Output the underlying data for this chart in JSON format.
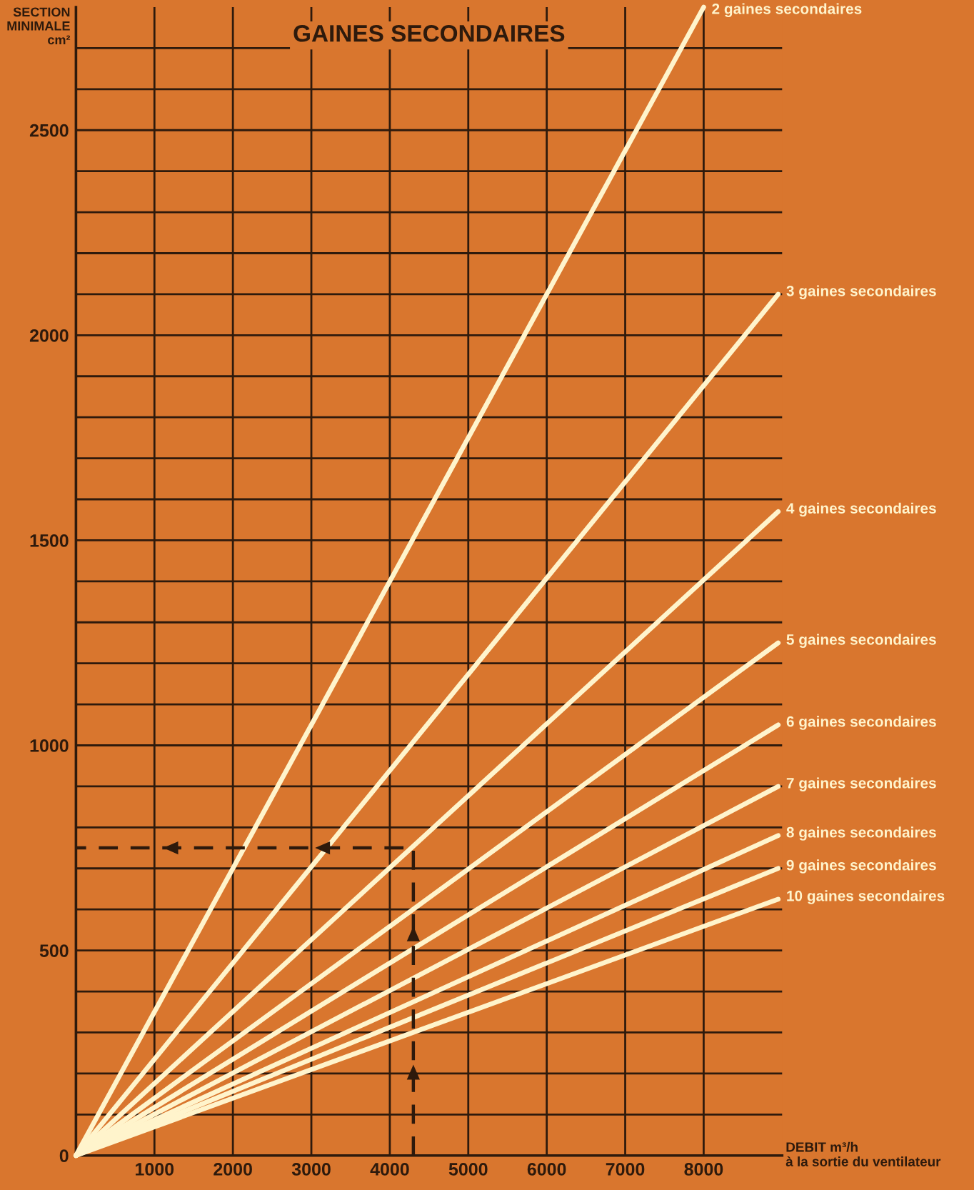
{
  "chart_data": {
    "type": "line",
    "title": "GAINES SECONDAIRES",
    "xlabel": "DEBIT m³/h\nà la sortie du ventilateur",
    "ylabel": "SECTION\nMINIMALE\ncm²",
    "series": [
      {
        "name": "2 gaines secondaires",
        "color": "#fff4cc",
        "x": [
          0,
          8000
        ],
        "values": [
          0,
          2800
        ]
      },
      {
        "name": "3 gaines secondaires",
        "color": "#fff4cc",
        "x": [
          0,
          8950
        ],
        "values": [
          0,
          2100
        ]
      },
      {
        "name": "4 gaines secondaires",
        "color": "#fff4cc",
        "x": [
          0,
          8950
        ],
        "values": [
          0,
          1570
        ]
      },
      {
        "name": "5 gaines secondaires",
        "color": "#fff4cc",
        "x": [
          0,
          8950
        ],
        "values": [
          0,
          1250
        ]
      },
      {
        "name": "6 gaines secondaires",
        "color": "#fff4cc",
        "x": [
          0,
          8950
        ],
        "values": [
          0,
          1050
        ]
      },
      {
        "name": "7 gaines secondaires",
        "color": "#fff4cc",
        "x": [
          0,
          8950
        ],
        "values": [
          0,
          900
        ]
      },
      {
        "name": "8 gaines secondaires",
        "color": "#fff4cc",
        "x": [
          0,
          8950
        ],
        "values": [
          0,
          780
        ]
      },
      {
        "name": "9 gaines secondaires",
        "color": "#fff4cc",
        "x": [
          0,
          8950
        ],
        "values": [
          0,
          700
        ]
      },
      {
        "name": "10 gaines secondaires",
        "color": "#fff4cc",
        "x": [
          0,
          8950
        ],
        "values": [
          0,
          625
        ]
      },
      {
        "type": "line",
        "line_style": "dashed",
        "color": "#2e1a0c",
        "x": [
          4300,
          4300,
          0
        ],
        "values": [
          0,
          750,
          750
        ]
      }
    ],
    "xlim": [
      0,
      9000
    ],
    "ylim": [
      0,
      2800
    ],
    "xticks": [
      1000,
      2000,
      3000,
      4000,
      5000,
      6000,
      7000,
      8000
    ],
    "yticks": [
      0,
      {
        "value": 100,
        "label": null
      },
      {
        "value": 200,
        "label": null
      },
      {
        "value": 300,
        "label": null
      },
      {
        "value": 400,
        "label": null
      },
      500,
      {
        "value": 600,
        "label": null
      },
      {
        "value": 700,
        "label": null
      },
      {
        "value": 800,
        "label": null
      },
      {
        "value": 900,
        "label": null
      },
      1000,
      {
        "value": 1100,
        "label": null
      },
      {
        "value": 1200,
        "label": null
      },
      {
        "value": 1300,
        "label": null
      },
      {
        "value": 1400,
        "label": null
      },
      1500,
      {
        "value": 1600,
        "label": null
      },
      {
        "value": 1700,
        "label": null
      },
      {
        "value": 1800,
        "label": null
      },
      {
        "value": 1900,
        "label": null
      },
      2000,
      {
        "value": 2100,
        "label": null
      },
      {
        "value": 2200,
        "label": null
      },
      {
        "value": 2300,
        "label": null
      },
      {
        "value": 2400,
        "label": null
      },
      2500,
      {
        "value": 2600,
        "label": null
      },
      {
        "value": 2700,
        "label": null
      }
    ],
    "grid": true
  }
}
